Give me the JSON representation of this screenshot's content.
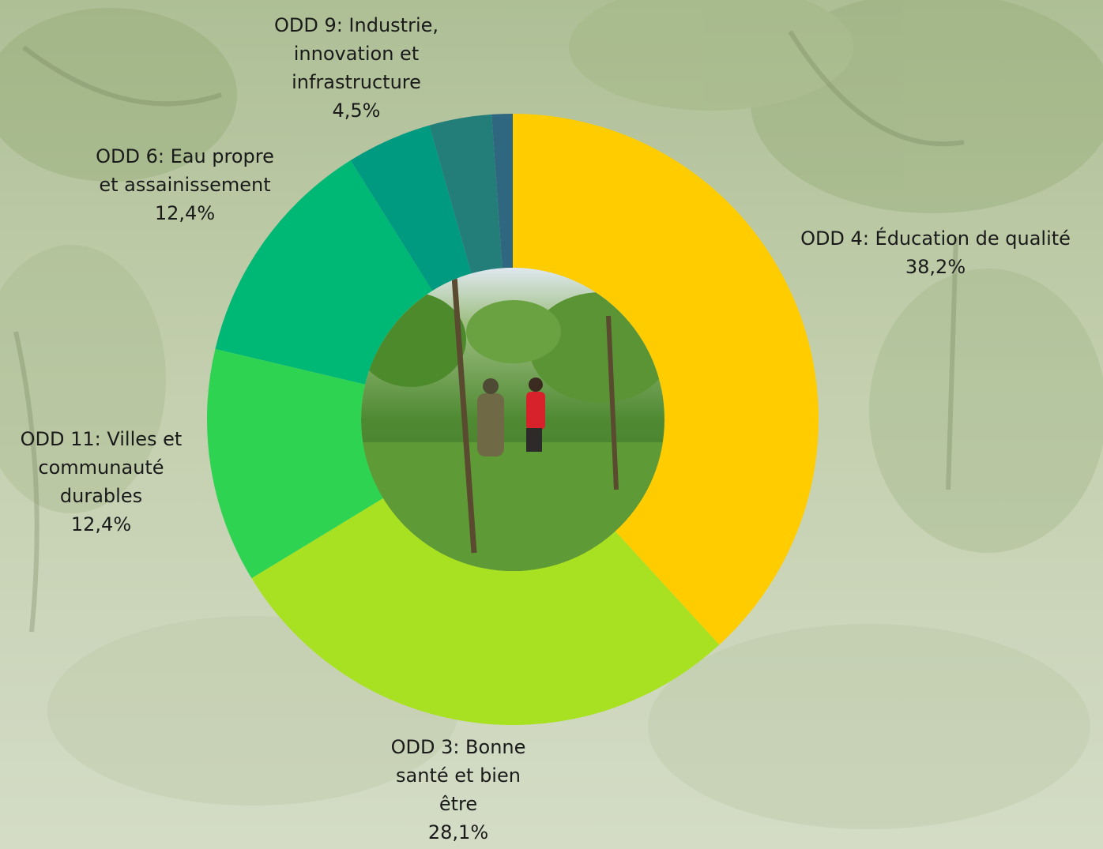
{
  "chart_data": {
    "type": "donut",
    "title": "",
    "slices": [
      {
        "label_lines": [
          "ODD 4: Éducation de qualité"
        ],
        "value": 38.2,
        "value_label": "38,2%",
        "color": "#FFCC00"
      },
      {
        "label_lines": [
          "ODD 3: Bonne",
          "santé et bien",
          "être"
        ],
        "value": 28.1,
        "value_label": "28,1%",
        "color": "#A8E022"
      },
      {
        "label_lines": [
          "ODD 11: Villes et",
          "communauté",
          "durables"
        ],
        "value": 12.4,
        "value_label": "12,4%",
        "color": "#2ED352"
      },
      {
        "label_lines": [
          "ODD 6: Eau propre",
          "et assainissement"
        ],
        "value": 12.4,
        "value_label": "12,4%",
        "color": "#00B875"
      },
      {
        "label_lines": [
          "ODD 9: Industrie,",
          "innovation et",
          "infrastructure"
        ],
        "value": 4.5,
        "value_label": "4,5%",
        "color": "#009A80"
      },
      {
        "label_lines": [],
        "value": 3.3,
        "value_label": "",
        "color": "#237E7A"
      },
      {
        "label_lines": [],
        "value": 1.1,
        "value_label": "",
        "color": "#2F6680"
      }
    ],
    "legend": "none",
    "center_image": "photo of people standing among trees and tall grass"
  }
}
